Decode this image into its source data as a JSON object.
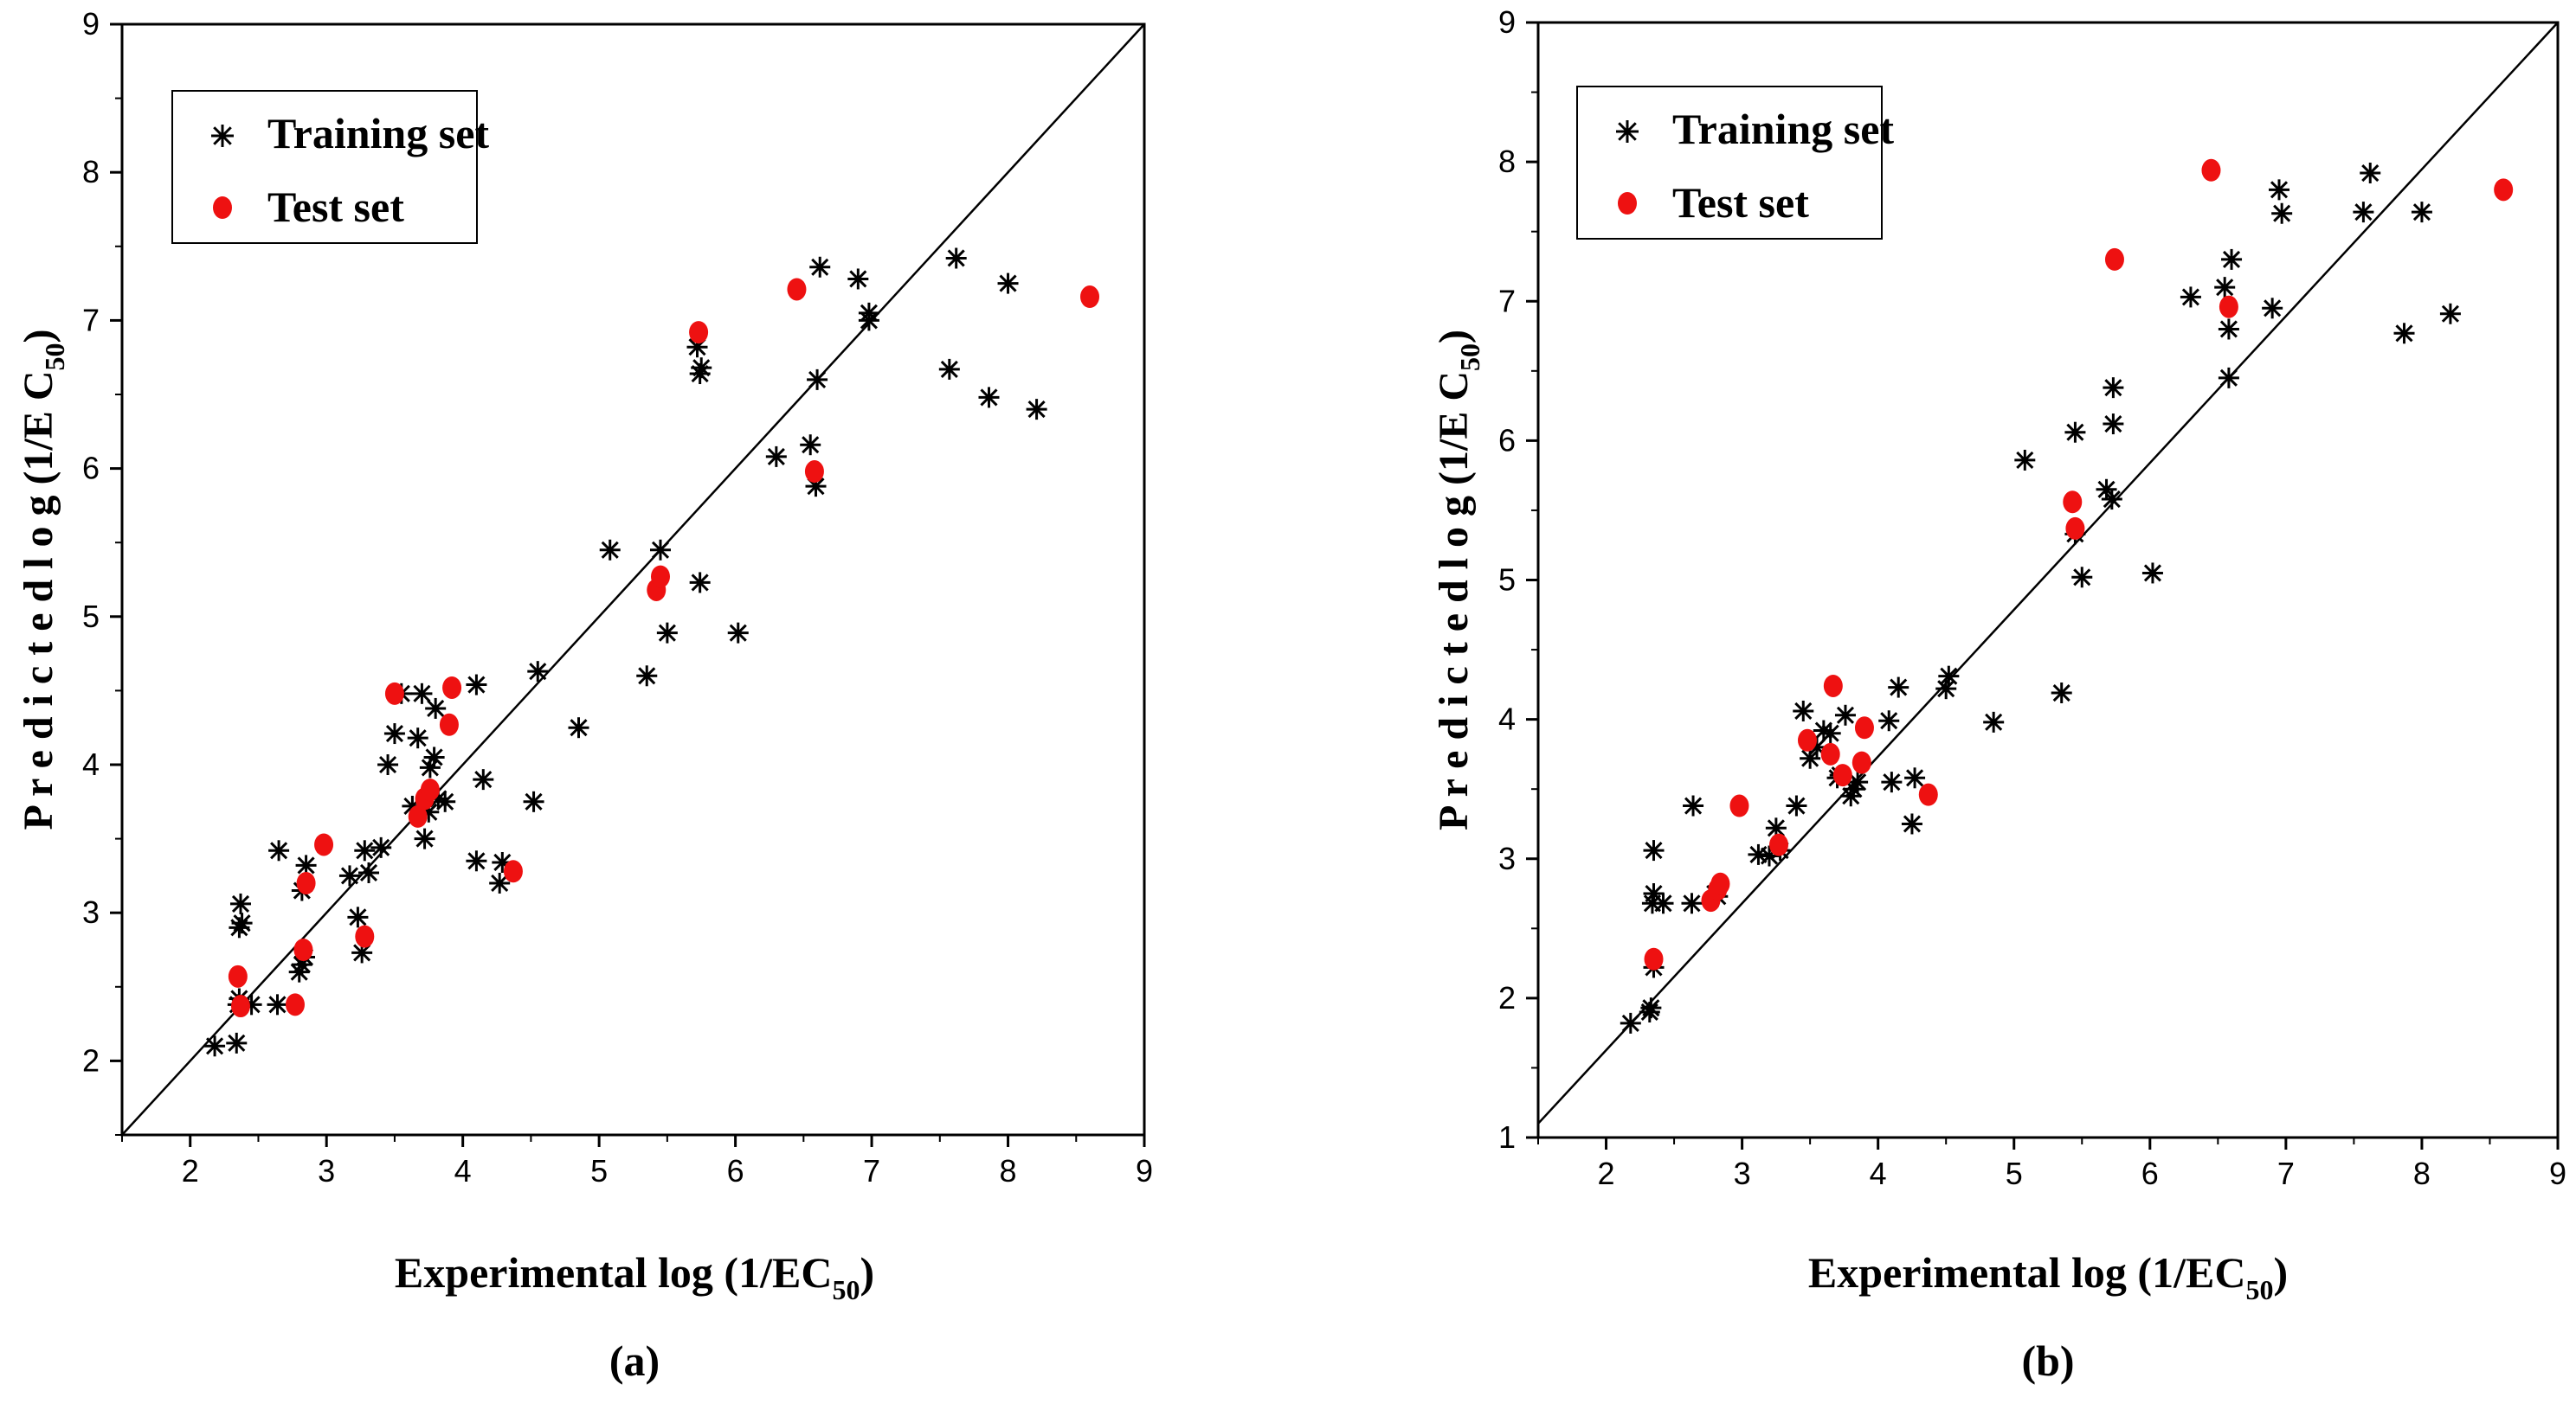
{
  "chart_data": [
    {
      "type": "scatter",
      "panel_label": "(a)",
      "xlabel": "Experimental log (1/EC",
      "xlabel_sub": "50",
      "xlabel_end": ")",
      "ylabel": "P r e d i c t e d  l o g  (1/E C",
      "ylabel_sub": "50",
      "ylabel_end": ")",
      "xlim": [
        1.5,
        9
      ],
      "ylim": [
        1.5,
        9
      ],
      "xticks": [
        2,
        3,
        4,
        5,
        6,
        7,
        8,
        9
      ],
      "yticks": [
        2,
        3,
        4,
        5,
        6,
        7,
        8,
        9
      ],
      "diagonal": [
        [
          1.5,
          1.5
        ],
        [
          9,
          9
        ]
      ],
      "legend": [
        "Training set",
        "Test set"
      ],
      "legend_position": "top-left",
      "series": [
        {
          "name": "Training set",
          "marker": "asterisk",
          "color": "#000000",
          "points": [
            [
              2.18,
              2.1
            ],
            [
              2.34,
              2.12
            ],
            [
              2.35,
              2.38
            ],
            [
              2.36,
              2.42
            ],
            [
              2.36,
              2.9
            ],
            [
              2.37,
              3.06
            ],
            [
              2.38,
              2.93
            ],
            [
              2.45,
              2.38
            ],
            [
              2.64,
              2.38
            ],
            [
              2.65,
              3.42
            ],
            [
              2.8,
              2.6
            ],
            [
              2.82,
              2.65
            ],
            [
              2.84,
              2.7
            ],
            [
              2.82,
              3.15
            ],
            [
              2.85,
              3.32
            ],
            [
              3.17,
              3.25
            ],
            [
              3.23,
              2.97
            ],
            [
              3.26,
              2.73
            ],
            [
              3.28,
              3.42
            ],
            [
              3.31,
              3.27
            ],
            [
              3.4,
              3.44
            ],
            [
              3.45,
              4.0
            ],
            [
              3.5,
              4.21
            ],
            [
              3.55,
              4.48
            ],
            [
              3.63,
              3.72
            ],
            [
              3.67,
              4.18
            ],
            [
              3.7,
              4.48
            ],
            [
              3.72,
              3.5
            ],
            [
              3.75,
              3.68
            ],
            [
              3.76,
              3.98
            ],
            [
              3.79,
              4.05
            ],
            [
              3.82,
              3.77
            ],
            [
              3.87,
              3.75
            ],
            [
              3.8,
              4.38
            ],
            [
              4.1,
              4.54
            ],
            [
              4.1,
              3.35
            ],
            [
              4.15,
              3.9
            ],
            [
              4.27,
              3.2
            ],
            [
              4.29,
              3.34
            ],
            [
              4.52,
              3.75
            ],
            [
              4.55,
              4.63
            ],
            [
              4.85,
              4.25
            ],
            [
              5.08,
              5.45
            ],
            [
              5.35,
              4.6
            ],
            [
              5.45,
              5.45
            ],
            [
              5.5,
              4.89
            ],
            [
              5.72,
              6.82
            ],
            [
              5.75,
              6.68
            ],
            [
              5.74,
              6.64
            ],
            [
              5.74,
              5.23
            ],
            [
              6.02,
              4.89
            ],
            [
              6.3,
              6.08
            ],
            [
              6.55,
              6.16
            ],
            [
              6.59,
              5.88
            ],
            [
              6.6,
              6.6
            ],
            [
              6.62,
              7.36
            ],
            [
              6.9,
              7.28
            ],
            [
              6.98,
              7.05
            ],
            [
              6.98,
              7.0
            ],
            [
              7.57,
              6.67
            ],
            [
              7.62,
              7.42
            ],
            [
              7.86,
              6.48
            ],
            [
              8.0,
              7.25
            ],
            [
              8.21,
              6.4
            ]
          ]
        },
        {
          "name": "Test set",
          "marker": "dot",
          "color": "#ee1111",
          "points": [
            [
              2.35,
              2.57
            ],
            [
              2.37,
              2.37
            ],
            [
              2.77,
              2.38
            ],
            [
              2.83,
              2.75
            ],
            [
              2.85,
              3.2
            ],
            [
              2.98,
              3.46
            ],
            [
              3.28,
              2.84
            ],
            [
              3.5,
              4.48
            ],
            [
              3.67,
              3.65
            ],
            [
              3.72,
              3.77
            ],
            [
              3.76,
              3.83
            ],
            [
              3.9,
              4.27
            ],
            [
              3.92,
              4.52
            ],
            [
              4.37,
              3.28
            ],
            [
              5.42,
              5.18
            ],
            [
              5.45,
              5.27
            ],
            [
              5.73,
              6.92
            ],
            [
              6.45,
              7.21
            ],
            [
              6.58,
              5.98
            ],
            [
              8.6,
              7.16
            ]
          ]
        }
      ]
    },
    {
      "type": "scatter",
      "panel_label": "(b)",
      "xlabel": "Experimental log (1/EC",
      "xlabel_sub": "50",
      "xlabel_end": ")",
      "ylabel": "P r e d i c t e d  l o g  (1/E C",
      "ylabel_sub": "50",
      "ylabel_end": ")",
      "xlim": [
        1.5,
        9
      ],
      "ylim": [
        1,
        9
      ],
      "xticks": [
        2,
        3,
        4,
        5,
        6,
        7,
        8,
        9
      ],
      "yticks": [
        1,
        2,
        3,
        4,
        5,
        6,
        7,
        8,
        9
      ],
      "diagonal": [
        [
          1.5,
          1.1
        ],
        [
          9,
          9
        ]
      ],
      "legend": [
        "Training set",
        "Test set"
      ],
      "legend_position": "top-left",
      "series": [
        {
          "name": "Training set",
          "marker": "asterisk",
          "color": "#000000",
          "points": [
            [
              2.18,
              1.82
            ],
            [
              2.32,
              1.9
            ],
            [
              2.33,
              1.93
            ],
            [
              2.34,
              2.68
            ],
            [
              2.35,
              2.75
            ],
            [
              2.35,
              3.06
            ],
            [
              2.35,
              2.22
            ],
            [
              2.42,
              2.68
            ],
            [
              2.63,
              2.68
            ],
            [
              2.64,
              3.38
            ],
            [
              2.8,
              2.75
            ],
            [
              2.82,
              2.73
            ],
            [
              3.12,
              3.03
            ],
            [
              3.2,
              3.02
            ],
            [
              3.25,
              3.22
            ],
            [
              3.28,
              3.06
            ],
            [
              3.4,
              3.38
            ],
            [
              3.45,
              4.06
            ],
            [
              3.5,
              3.72
            ],
            [
              3.55,
              3.8
            ],
            [
              3.6,
              3.92
            ],
            [
              3.65,
              3.9
            ],
            [
              3.7,
              3.58
            ],
            [
              3.72,
              3.6
            ],
            [
              3.76,
              4.03
            ],
            [
              3.8,
              3.45
            ],
            [
              3.82,
              3.5
            ],
            [
              3.85,
              3.55
            ],
            [
              4.08,
              3.99
            ],
            [
              4.1,
              3.55
            ],
            [
              4.15,
              4.23
            ],
            [
              4.25,
              3.25
            ],
            [
              4.27,
              3.58
            ],
            [
              4.5,
              4.22
            ],
            [
              4.52,
              4.31
            ],
            [
              4.85,
              3.98
            ],
            [
              5.08,
              5.86
            ],
            [
              5.35,
              4.19
            ],
            [
              5.45,
              6.06
            ],
            [
              5.45,
              5.33
            ],
            [
              5.5,
              5.02
            ],
            [
              5.68,
              5.65
            ],
            [
              5.72,
              5.58
            ],
            [
              5.73,
              6.12
            ],
            [
              5.73,
              6.38
            ],
            [
              6.02,
              5.05
            ],
            [
              6.3,
              7.03
            ],
            [
              6.55,
              7.1
            ],
            [
              6.58,
              6.45
            ],
            [
              6.58,
              6.8
            ],
            [
              6.6,
              7.3
            ],
            [
              6.9,
              6.95
            ],
            [
              6.95,
              7.8
            ],
            [
              6.97,
              7.63
            ],
            [
              7.57,
              7.64
            ],
            [
              7.62,
              7.92
            ],
            [
              7.87,
              6.77
            ],
            [
              8.0,
              7.64
            ],
            [
              8.21,
              6.91
            ]
          ]
        },
        {
          "name": "Test set",
          "marker": "dot",
          "color": "#ee1111",
          "points": [
            [
              2.35,
              2.28
            ],
            [
              2.77,
              2.7
            ],
            [
              2.82,
              2.78
            ],
            [
              2.84,
              2.82
            ],
            [
              2.98,
              3.38
            ],
            [
              3.27,
              3.1
            ],
            [
              3.48,
              3.85
            ],
            [
              3.65,
              3.75
            ],
            [
              3.67,
              4.24
            ],
            [
              3.74,
              3.6
            ],
            [
              3.88,
              3.69
            ],
            [
              3.9,
              3.94
            ],
            [
              4.37,
              3.46
            ],
            [
              5.43,
              5.56
            ],
            [
              5.45,
              5.37
            ],
            [
              5.74,
              7.3
            ],
            [
              6.45,
              7.94
            ],
            [
              6.58,
              6.96
            ],
            [
              8.6,
              7.8
            ]
          ]
        }
      ]
    }
  ]
}
